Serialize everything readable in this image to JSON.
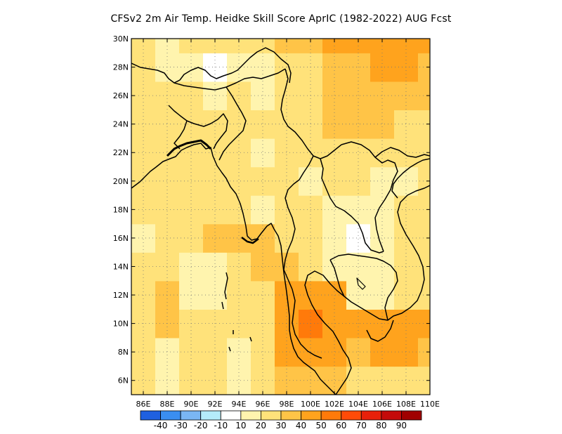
{
  "title": "CFSv2  2m Air Temp. Heidke Skill Score AprIC (1982-2022) AUG Fcst",
  "map": {
    "lon_range": [
      85,
      110
    ],
    "lat_range": [
      5,
      30
    ],
    "lat_ticks": [
      {
        "value": 6,
        "label": "6N"
      },
      {
        "value": 8,
        "label": "8N"
      },
      {
        "value": 10,
        "label": "10N"
      },
      {
        "value": 12,
        "label": "12N"
      },
      {
        "value": 14,
        "label": "14N"
      },
      {
        "value": 16,
        "label": "16N"
      },
      {
        "value": 18,
        "label": "18N"
      },
      {
        "value": 20,
        "label": "20N"
      },
      {
        "value": 22,
        "label": "22N"
      },
      {
        "value": 24,
        "label": "24N"
      },
      {
        "value": 26,
        "label": "26N"
      },
      {
        "value": 28,
        "label": "28N"
      },
      {
        "value": 30,
        "label": "30N"
      }
    ],
    "lon_ticks": [
      {
        "value": 86,
        "label": "86E"
      },
      {
        "value": 88,
        "label": "88E"
      },
      {
        "value": 90,
        "label": "90E"
      },
      {
        "value": 92,
        "label": "92E"
      },
      {
        "value": 94,
        "label": "94E"
      },
      {
        "value": 96,
        "label": "96E"
      },
      {
        "value": 98,
        "label": "98E"
      },
      {
        "value": 100,
        "label": "100E"
      },
      {
        "value": 102,
        "label": "102E"
      },
      {
        "value": 104,
        "label": "104E"
      },
      {
        "value": 106,
        "label": "106E"
      },
      {
        "value": 108,
        "label": "108E"
      },
      {
        "value": 110,
        "label": "110E"
      }
    ],
    "grid": "dotted"
  },
  "colorbar": {
    "colors": [
      "#1f60e0",
      "#3a8ef0",
      "#7ab6f4",
      "#b4ecfa",
      "#ffffff",
      "#fff4ae",
      "#ffe27a",
      "#ffc447",
      "#ffa31d",
      "#ff7a0a",
      "#ff4b08",
      "#e8200a",
      "#c40a0a",
      "#a00000"
    ],
    "labels": [
      "-40",
      "-30",
      "-20",
      "-10",
      "10",
      "20",
      "30",
      "40",
      "50",
      "60",
      "70",
      "80",
      "90"
    ]
  },
  "chart_data": {
    "type": "heatmap",
    "variable": "2m Air Temp. Heidke Skill Score",
    "x": [
      86,
      88,
      90,
      92,
      94,
      96,
      98,
      100,
      102,
      104,
      106,
      108,
      110
    ],
    "y": [
      6,
      8,
      10,
      12,
      14,
      16,
      18,
      20,
      22,
      24,
      26,
      28,
      30
    ],
    "z": [
      [
        20,
        15,
        20,
        20,
        15,
        25,
        35,
        35,
        30,
        25,
        20,
        20,
        20
      ],
      [
        20,
        15,
        20,
        25,
        15,
        20,
        40,
        45,
        40,
        35,
        40,
        40,
        35
      ],
      [
        25,
        30,
        20,
        20,
        20,
        25,
        40,
        50,
        45,
        40,
        40,
        45,
        40
      ],
      [
        25,
        35,
        10,
        15,
        20,
        25,
        45,
        45,
        40,
        15,
        10,
        20,
        25
      ],
      [
        20,
        25,
        10,
        10,
        25,
        30,
        35,
        25,
        10,
        10,
        15,
        20,
        20
      ],
      [
        15,
        20,
        25,
        35,
        30,
        35,
        25,
        20,
        10,
        5,
        15,
        25,
        20
      ],
      [
        20,
        20,
        25,
        25,
        20,
        15,
        20,
        20,
        15,
        10,
        15,
        20,
        20
      ],
      [
        25,
        25,
        25,
        20,
        20,
        20,
        20,
        15,
        20,
        20,
        10,
        15,
        20
      ],
      [
        20,
        25,
        20,
        20,
        20,
        15,
        20,
        20,
        20,
        25,
        25,
        20,
        20
      ],
      [
        20,
        20,
        20,
        20,
        20,
        20,
        25,
        25,
        30,
        30,
        30,
        25,
        25
      ],
      [
        25,
        20,
        20,
        15,
        20,
        15,
        20,
        25,
        30,
        35,
        35,
        35,
        30
      ],
      [
        20,
        15,
        10,
        5,
        10,
        15,
        20,
        25,
        30,
        35,
        40,
        40,
        35
      ],
      [
        20,
        15,
        20,
        20,
        25,
        25,
        30,
        30,
        40,
        45,
        45,
        40,
        40
      ]
    ]
  }
}
